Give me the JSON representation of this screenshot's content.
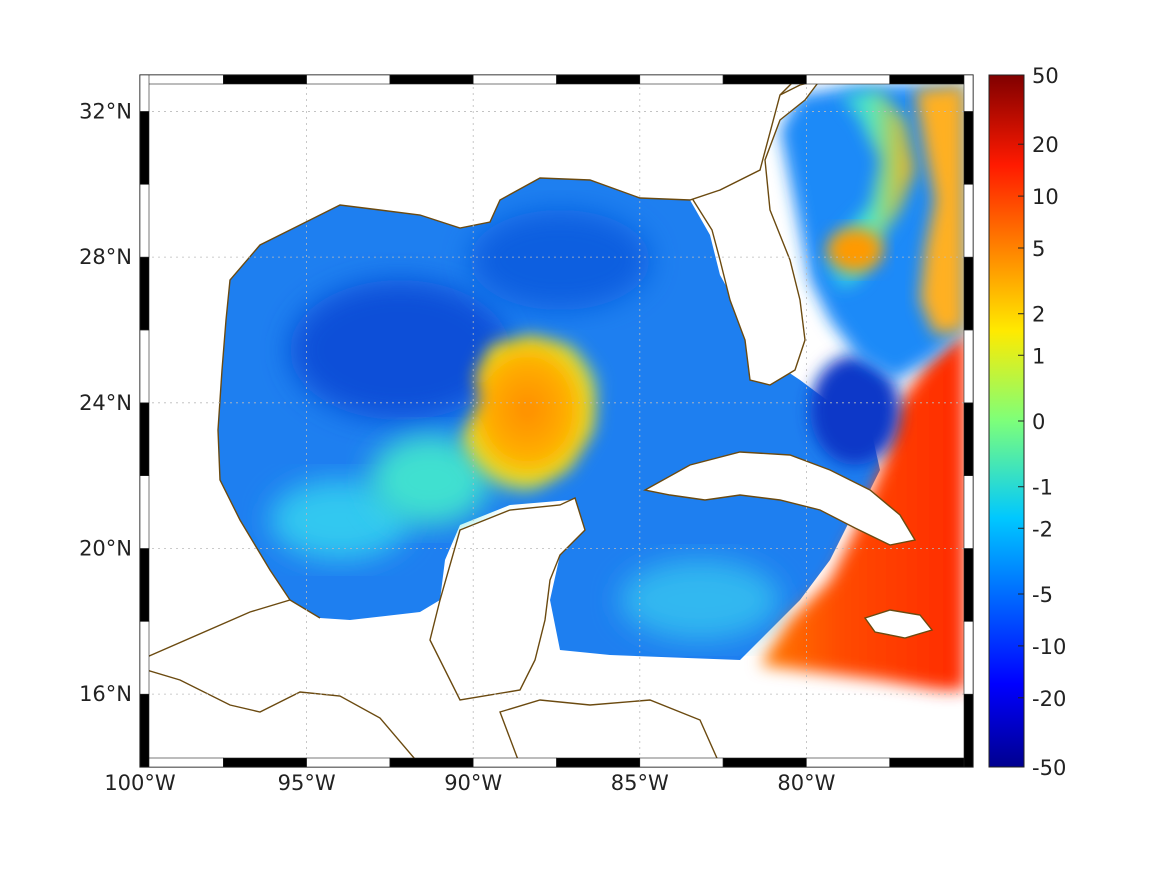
{
  "map": {
    "lon_range": [
      -100,
      -75
    ],
    "lat_range": [
      14,
      33
    ],
    "x_ticks": [
      {
        "lon": -100,
        "label": "100°W"
      },
      {
        "lon": -95,
        "label": "95°W"
      },
      {
        "lon": -90,
        "label": "90°W"
      },
      {
        "lon": -85,
        "label": "85°W"
      },
      {
        "lon": -80,
        "label": "80°W"
      }
    ],
    "y_ticks": [
      {
        "lat": 32,
        "label": "32°N"
      },
      {
        "lat": 28,
        "label": "28°N"
      },
      {
        "lat": 24,
        "label": "24°N"
      },
      {
        "lat": 20,
        "label": "20°N"
      },
      {
        "lat": 16,
        "label": "16°N"
      }
    ],
    "grid": true,
    "coastline_color": "#6b4a10",
    "colorbar": {
      "ticks": [
        "50",
        "20",
        "10",
        "5",
        "2",
        "1",
        "0",
        "-1",
        "-2",
        "-5",
        "-10",
        "-20",
        "-50"
      ],
      "colormap": "jet",
      "range": [
        -50,
        50
      ]
    }
  }
}
